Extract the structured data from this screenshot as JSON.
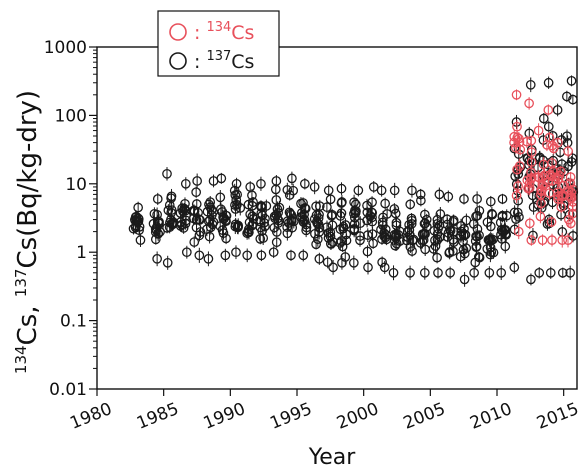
{
  "chart_data": {
    "type": "scatter",
    "title": "",
    "xlabel": "Year",
    "ylabel": "Cs, Cs(Bq/kg-dry)",
    "ylabel_parts": {
      "iso1": "134",
      "el1": "Cs, ",
      "iso2": "137",
      "el2": "Cs(Bq/kg-dry)"
    },
    "xlim": [
      1980,
      2016
    ],
    "ylim": [
      0.01,
      1000
    ],
    "y_scale": "log",
    "grid": false,
    "legend_position": "top-left",
    "x_ticks": [
      "1980",
      "1985",
      "1990",
      "1995",
      "2000",
      "2005",
      "2010",
      "2015"
    ],
    "y_ticks": [
      "0.01",
      "0.1",
      "1",
      "10",
      "100",
      "1000"
    ],
    "series": [
      {
        "name": "137Cs",
        "legend_iso": "137",
        "legend_el": "Cs",
        "legend_prefix": ": ",
        "color": "#1a1a1a",
        "marker": "open-circle-with-errorbar",
        "columns": [
          {
            "x": 1983.0,
            "ymin": 1.5,
            "ymax": 4.5
          },
          {
            "x": 1984.5,
            "ymin": 0.8,
            "ymax": 6.0
          },
          {
            "x": 1985.5,
            "ymin": 0.7,
            "ymax": 14.0
          },
          {
            "x": 1986.5,
            "ymin": 1.0,
            "ymax": 10.0
          },
          {
            "x": 1987.5,
            "ymin": 0.9,
            "ymax": 11.0
          },
          {
            "x": 1988.5,
            "ymin": 0.8,
            "ymax": 11.0
          },
          {
            "x": 1989.5,
            "ymin": 0.9,
            "ymax": 12.0
          },
          {
            "x": 1990.5,
            "ymin": 1.0,
            "ymax": 10.0
          },
          {
            "x": 1991.5,
            "ymin": 0.9,
            "ymax": 9.0
          },
          {
            "x": 1992.5,
            "ymin": 0.9,
            "ymax": 10.0
          },
          {
            "x": 1993.5,
            "ymin": 1.0,
            "ymax": 11.0
          },
          {
            "x": 1994.5,
            "ymin": 0.9,
            "ymax": 12.0
          },
          {
            "x": 1995.5,
            "ymin": 0.9,
            "ymax": 10.0
          },
          {
            "x": 1996.5,
            "ymin": 0.8,
            "ymax": 9.0
          },
          {
            "x": 1997.5,
            "ymin": 0.6,
            "ymax": 8.0
          },
          {
            "x": 1998.5,
            "ymin": 0.7,
            "ymax": 8.5
          },
          {
            "x": 1999.5,
            "ymin": 0.7,
            "ymax": 8.0
          },
          {
            "x": 2000.5,
            "ymin": 0.6,
            "ymax": 9.0
          },
          {
            "x": 2001.5,
            "ymin": 0.6,
            "ymax": 8.0
          },
          {
            "x": 2002.5,
            "ymin": 0.5,
            "ymax": 8.0
          },
          {
            "x": 2003.5,
            "ymin": 0.5,
            "ymax": 8.0
          },
          {
            "x": 2004.5,
            "ymin": 0.5,
            "ymax": 7.0
          },
          {
            "x": 2005.5,
            "ymin": 0.5,
            "ymax": 7.0
          },
          {
            "x": 2006.5,
            "ymin": 0.5,
            "ymax": 6.5
          },
          {
            "x": 2007.5,
            "ymin": 0.4,
            "ymax": 6.0
          },
          {
            "x": 2008.5,
            "ymin": 0.5,
            "ymax": 6.0
          },
          {
            "x": 2009.5,
            "ymin": 0.5,
            "ymax": 5.5
          },
          {
            "x": 2010.5,
            "ymin": 0.5,
            "ymax": 6.0
          },
          {
            "x": 2011.5,
            "ymin": 0.6,
            "ymax": 80.0
          },
          {
            "x": 2012.5,
            "ymin": 0.4,
            "ymax": 280.0
          },
          {
            "x": 2013.3,
            "ymin": 0.5,
            "ymax": 90.0
          },
          {
            "x": 2014.0,
            "ymin": 0.5,
            "ymax": 300.0
          },
          {
            "x": 2014.8,
            "ymin": 0.5,
            "ymax": 120.0
          },
          {
            "x": 2015.5,
            "ymin": 0.5,
            "ymax": 320.0
          }
        ]
      },
      {
        "name": "134Cs",
        "legend_iso": "134",
        "legend_el": "Cs",
        "legend_prefix": ": ",
        "color": "#e8505b",
        "marker": "open-circle-with-errorbar",
        "columns": [
          {
            "x": 2011.5,
            "ymin": 2.0,
            "ymax": 200.0
          },
          {
            "x": 2012.5,
            "ymin": 1.5,
            "ymax": 150.0
          },
          {
            "x": 2013.3,
            "ymin": 1.5,
            "ymax": 60.0
          },
          {
            "x": 2014.0,
            "ymin": 1.5,
            "ymax": 120.0
          },
          {
            "x": 2014.8,
            "ymin": 1.5,
            "ymax": 40.0
          },
          {
            "x": 2015.5,
            "ymin": 1.5,
            "ymax": 30.0
          }
        ]
      }
    ]
  }
}
